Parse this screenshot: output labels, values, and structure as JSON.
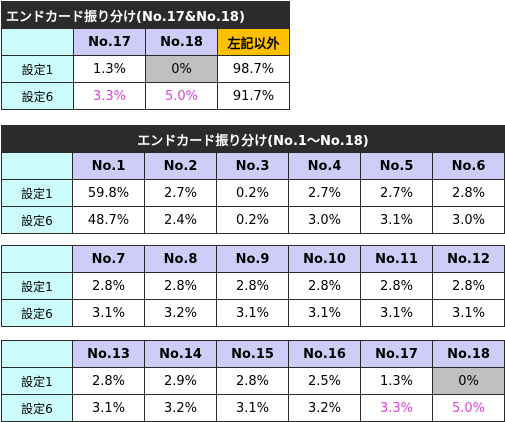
{
  "colors": {
    "title_bg": "#2b2b2b",
    "header_bg": "#cdcdf7",
    "label_bg": "#ccfbfb",
    "highlight_orange": "#ffc000",
    "gray_cell": "#c0c0c0",
    "pink_text": "#e040e0"
  },
  "table1": {
    "title": "エンドカード振り分け(No.17&No.18)",
    "headers": [
      "No.17",
      "No.18",
      "左記以外"
    ],
    "rows": [
      {
        "label": "設定1",
        "values": [
          "1.3%",
          "0%",
          "98.7%"
        ]
      },
      {
        "label": "設定6",
        "values": [
          "3.3%",
          "5.0%",
          "91.7%"
        ]
      }
    ]
  },
  "table2": {
    "title": "エンドカード振り分け(No.1〜No.18)",
    "blocks": [
      {
        "headers": [
          "No.1",
          "No.2",
          "No.3",
          "No.4",
          "No.5",
          "No.6"
        ],
        "rows": [
          {
            "label": "設定1",
            "values": [
              "59.8%",
              "2.7%",
              "0.2%",
              "2.7%",
              "2.7%",
              "2.8%"
            ]
          },
          {
            "label": "設定6",
            "values": [
              "48.7%",
              "2.4%",
              "0.2%",
              "3.0%",
              "3.1%",
              "3.0%"
            ]
          }
        ]
      },
      {
        "headers": [
          "No.7",
          "No.8",
          "No.9",
          "No.10",
          "No.11",
          "No.12"
        ],
        "rows": [
          {
            "label": "設定1",
            "values": [
              "2.8%",
              "2.8%",
              "2.8%",
              "2.8%",
              "2.8%",
              "2.8%"
            ]
          },
          {
            "label": "設定6",
            "values": [
              "3.1%",
              "3.2%",
              "3.1%",
              "3.1%",
              "3.1%",
              "3.1%"
            ]
          }
        ]
      },
      {
        "headers": [
          "No.13",
          "No.14",
          "No.15",
          "No.16",
          "No.17",
          "No.18"
        ],
        "rows": [
          {
            "label": "設定1",
            "values": [
              "2.8%",
              "2.9%",
              "2.8%",
              "2.5%",
              "1.3%",
              "0%"
            ]
          },
          {
            "label": "設定6",
            "values": [
              "3.1%",
              "3.2%",
              "3.1%",
              "3.2%",
              "3.3%",
              "5.0%"
            ]
          }
        ]
      }
    ]
  }
}
